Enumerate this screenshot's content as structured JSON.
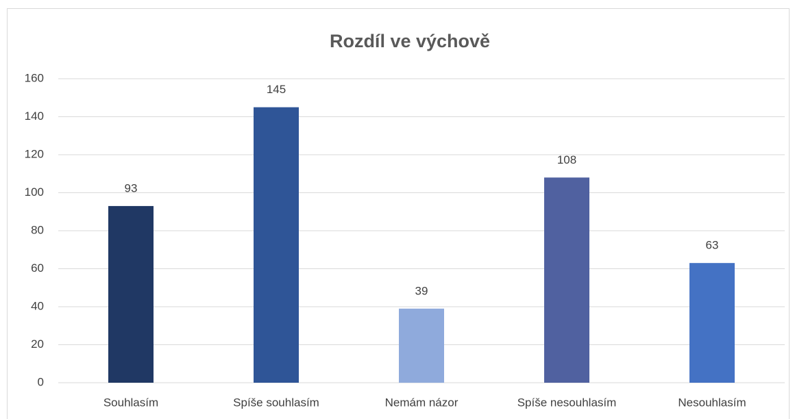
{
  "chart_data": {
    "type": "bar",
    "title": "Rozdíl ve výchově",
    "categories": [
      "Souhlasím",
      "Spíše souhlasím",
      "Nemám názor",
      "Spíše nesouhlasím",
      "Nesouhlasím"
    ],
    "values": [
      93,
      145,
      39,
      108,
      63
    ],
    "colors": [
      "#203864",
      "#2f5597",
      "#8faadc",
      "#5061a0",
      "#4472c4"
    ],
    "ylim": [
      0,
      160
    ],
    "yticks": [
      0,
      20,
      40,
      60,
      80,
      100,
      120,
      140,
      160
    ],
    "grid": true
  }
}
